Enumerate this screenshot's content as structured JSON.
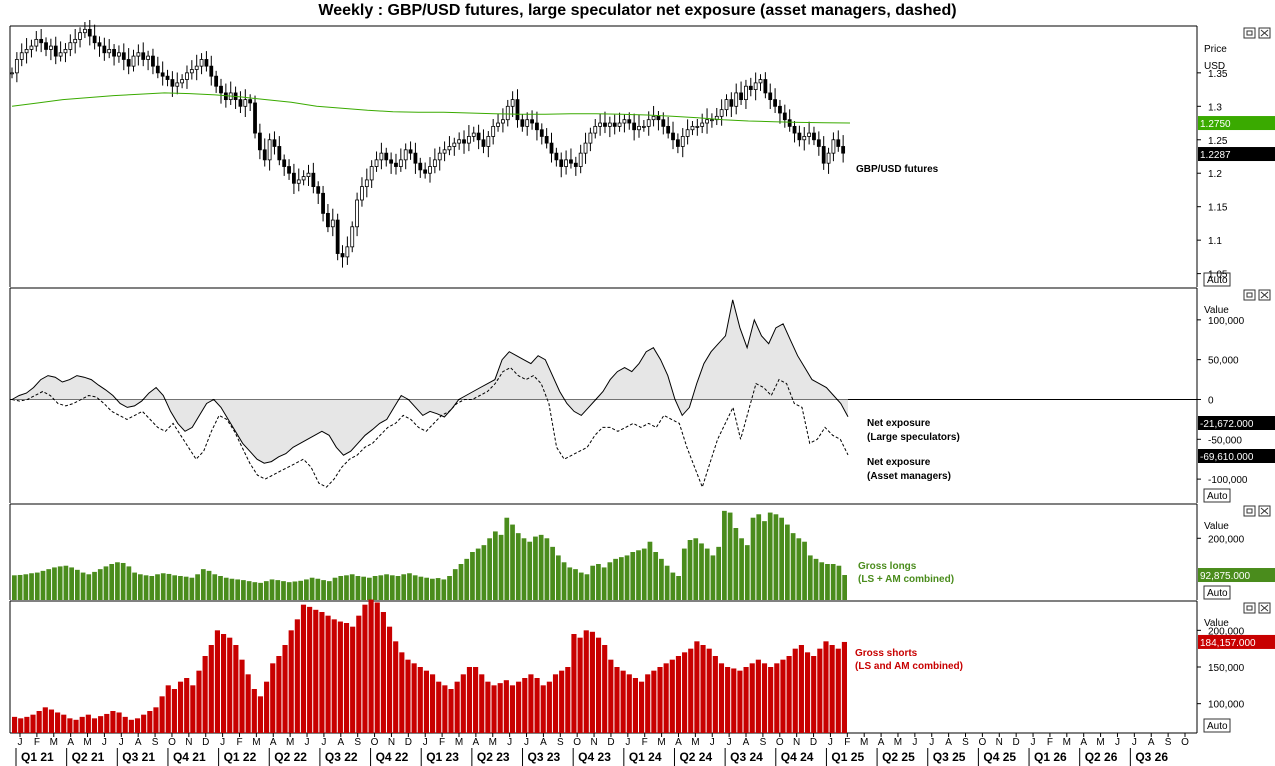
{
  "title": "Weekly : GBP/USD futures, large speculator net exposure (asset managers, dashed)",
  "colors": {
    "green": "#4a8c1c",
    "red": "#c80000",
    "ma": "#3aaa00",
    "black": "#000000"
  },
  "panel_buttons": {
    "auto_label": "Auto"
  },
  "chart_data": [
    {
      "type": "candlestick",
      "name": "price-panel",
      "axis_title": "Price",
      "axis_unit": "USD",
      "ylim": [
        1.03,
        1.42
      ],
      "yticks": [
        1.05,
        1.1,
        1.15,
        1.2,
        1.25,
        1.3,
        1.35
      ],
      "ytick_labels": [
        "1.05",
        "1.1",
        "1.15",
        "1.2",
        "1.25",
        "1.3",
        "1.35"
      ],
      "series_label": "GBP/USD futures",
      "ma_value_label": "1.2750",
      "ma_value": 1.275,
      "last_value_label": "1.2287",
      "last_value": 1.2287,
      "closes": [
        1.35,
        1.37,
        1.38,
        1.385,
        1.39,
        1.4,
        1.395,
        1.385,
        1.39,
        1.375,
        1.38,
        1.385,
        1.395,
        1.4,
        1.41,
        1.415,
        1.405,
        1.395,
        1.39,
        1.38,
        1.385,
        1.375,
        1.38,
        1.37,
        1.36,
        1.375,
        1.38,
        1.37,
        1.375,
        1.36,
        1.35,
        1.345,
        1.34,
        1.33,
        1.335,
        1.34,
        1.35,
        1.355,
        1.36,
        1.37,
        1.36,
        1.345,
        1.33,
        1.32,
        1.31,
        1.32,
        1.31,
        1.3,
        1.31,
        1.305,
        1.26,
        1.235,
        1.22,
        1.25,
        1.24,
        1.22,
        1.21,
        1.2,
        1.185,
        1.19,
        1.195,
        1.2,
        1.18,
        1.17,
        1.14,
        1.12,
        1.13,
        1.08,
        1.075,
        1.09,
        1.12,
        1.16,
        1.18,
        1.19,
        1.21,
        1.22,
        1.23,
        1.22,
        1.215,
        1.21,
        1.22,
        1.235,
        1.23,
        1.215,
        1.205,
        1.2,
        1.21,
        1.22,
        1.23,
        1.235,
        1.24,
        1.245,
        1.25,
        1.245,
        1.255,
        1.26,
        1.25,
        1.24,
        1.255,
        1.27,
        1.275,
        1.28,
        1.3,
        1.31,
        1.28,
        1.27,
        1.28,
        1.275,
        1.265,
        1.255,
        1.245,
        1.23,
        1.22,
        1.21,
        1.22,
        1.215,
        1.21,
        1.23,
        1.245,
        1.26,
        1.27,
        1.275,
        1.27,
        1.275,
        1.27,
        1.275,
        1.28,
        1.275,
        1.265,
        1.27,
        1.27,
        1.28,
        1.285,
        1.28,
        1.27,
        1.26,
        1.25,
        1.24,
        1.255,
        1.265,
        1.27,
        1.27,
        1.275,
        1.28,
        1.28,
        1.285,
        1.295,
        1.31,
        1.3,
        1.32,
        1.31,
        1.33,
        1.325,
        1.335,
        1.34,
        1.32,
        1.31,
        1.3,
        1.29,
        1.28,
        1.27,
        1.26,
        1.25,
        1.255,
        1.26,
        1.25,
        1.24,
        1.215,
        1.23,
        1.25,
        1.24,
        1.23
      ],
      "ma": [
        1.3,
        1.305,
        1.31,
        1.313,
        1.316,
        1.318,
        1.32,
        1.319,
        1.317,
        1.314,
        1.31,
        1.306,
        1.3,
        1.297,
        1.294,
        1.292,
        1.291,
        1.291,
        1.29,
        1.289,
        1.288,
        1.288,
        1.289,
        1.289,
        1.288,
        1.287,
        1.285,
        1.283,
        1.28,
        1.278,
        1.277,
        1.276,
        1.2755,
        1.275
      ]
    },
    {
      "type": "line",
      "name": "net-exposure-panel",
      "axis_title": "Value",
      "ylim": [
        -130000,
        140000
      ],
      "yticks": [
        100000,
        50000,
        0,
        -50000,
        -100000
      ],
      "ytick_labels": [
        "100,000",
        "50,000",
        "0",
        "-50,000",
        "-100,000"
      ],
      "series": [
        {
          "name": "Net exposure (Large speculators)",
          "label_line1": "Net exposure",
          "label_line2": "(Large speculators)",
          "value_label": "-21,672.000",
          "last": -21672,
          "style": "solid",
          "values": [
            0,
            5000,
            8000,
            15000,
            25000,
            30000,
            28000,
            22000,
            25000,
            30000,
            28000,
            25000,
            18000,
            12000,
            5000,
            -5000,
            -10000,
            -8000,
            -2000,
            8000,
            15000,
            5000,
            -15000,
            -30000,
            -40000,
            -35000,
            -20000,
            -5000,
            0,
            -10000,
            -25000,
            -40000,
            -55000,
            -65000,
            -75000,
            -80000,
            -78000,
            -72000,
            -68000,
            -60000,
            -55000,
            -50000,
            -45000,
            -40000,
            -45000,
            -60000,
            -70000,
            -65000,
            -55000,
            -45000,
            -38000,
            -30000,
            -25000,
            -10000,
            5000,
            0,
            -10000,
            -20000,
            -15000,
            -18000,
            -22000,
            -12000,
            0,
            5000,
            10000,
            15000,
            20000,
            25000,
            50000,
            60000,
            55000,
            50000,
            45000,
            55000,
            50000,
            30000,
            10000,
            -5000,
            -15000,
            -20000,
            -10000,
            0,
            10000,
            25000,
            35000,
            40000,
            35000,
            45000,
            60000,
            65000,
            50000,
            30000,
            0,
            -20000,
            -10000,
            20000,
            45000,
            60000,
            70000,
            80000,
            125000,
            90000,
            65000,
            100000,
            80000,
            70000,
            90000,
            95000,
            75000,
            55000,
            40000,
            25000,
            20000,
            15000,
            5000,
            -5000,
            -21672
          ]
        },
        {
          "name": "Net exposure (Asset managers)",
          "label_line1": "Net exposure",
          "label_line2": "(Asset managers)",
          "value_label": "-69,610.000",
          "last": -69610,
          "style": "dashed",
          "values": [
            0,
            -2000,
            0,
            5000,
            10000,
            5000,
            -5000,
            -8000,
            -5000,
            0,
            5000,
            3000,
            -5000,
            -15000,
            -20000,
            -25000,
            -20000,
            -15000,
            -25000,
            -35000,
            -40000,
            -30000,
            -45000,
            -60000,
            -75000,
            -65000,
            -40000,
            -20000,
            -25000,
            -40000,
            -60000,
            -80000,
            -95000,
            -100000,
            -95000,
            -90000,
            -85000,
            -80000,
            -75000,
            -85000,
            -105000,
            -110000,
            -100000,
            -85000,
            -75000,
            -70000,
            -60000,
            -55000,
            -45000,
            -35000,
            -30000,
            -20000,
            -25000,
            -35000,
            -40000,
            -30000,
            -20000,
            -15000,
            -5000,
            0,
            0,
            5000,
            10000,
            20000,
            35000,
            40000,
            30000,
            25000,
            30000,
            20000,
            -5000,
            -60000,
            -75000,
            -70000,
            -65000,
            -60000,
            -45000,
            -35000,
            -35000,
            -40000,
            -35000,
            -30000,
            -35000,
            -30000,
            -35000,
            -20000,
            -25000,
            -30000,
            -60000,
            -85000,
            -110000,
            -80000,
            -50000,
            -30000,
            -10000,
            -50000,
            -15000,
            20000,
            15000,
            5000,
            25000,
            20000,
            -5000,
            -10000,
            -55000,
            -50000,
            -35000,
            -45000,
            -50000,
            -69610
          ]
        }
      ]
    },
    {
      "type": "bar",
      "name": "gross-longs-panel",
      "axis_title": "Value",
      "ylim": [
        20000,
        300000
      ],
      "yticks": [
        200000
      ],
      "ytick_labels": [
        "200,000"
      ],
      "series_label_line1": "Gross longs",
      "series_label_line2": "(LS + AM combined)",
      "value_label": "92,875.000",
      "last": 92875,
      "values": [
        92000,
        93000,
        95000,
        98000,
        100000,
        105000,
        110000,
        115000,
        118000,
        120000,
        115000,
        108000,
        100000,
        95000,
        102000,
        110000,
        118000,
        125000,
        130000,
        128000,
        118000,
        100000,
        95000,
        92000,
        90000,
        95000,
        98000,
        96000,
        92000,
        90000,
        88000,
        85000,
        95000,
        110000,
        105000,
        95000,
        90000,
        85000,
        82000,
        80000,
        78000,
        75000,
        72000,
        70000,
        75000,
        80000,
        78000,
        75000,
        72000,
        74000,
        76000,
        80000,
        85000,
        82000,
        78000,
        75000,
        85000,
        90000,
        92000,
        95000,
        90000,
        88000,
        85000,
        90000,
        92000,
        95000,
        92000,
        90000,
        95000,
        98000,
        92000,
        88000,
        85000,
        82000,
        84000,
        80000,
        90000,
        110000,
        125000,
        140000,
        160000,
        170000,
        180000,
        200000,
        220000,
        210000,
        260000,
        240000,
        215000,
        200000,
        190000,
        205000,
        210000,
        200000,
        175000,
        150000,
        130000,
        115000,
        110000,
        100000,
        95000,
        120000,
        125000,
        115000,
        130000,
        140000,
        145000,
        150000,
        160000,
        165000,
        170000,
        190000,
        160000,
        140000,
        120000,
        100000,
        90000,
        170000,
        195000,
        200000,
        185000,
        170000,
        150000,
        175000,
        280000,
        275000,
        230000,
        200000,
        180000,
        260000,
        270000,
        250000,
        275000,
        270000,
        260000,
        240000,
        215000,
        200000,
        190000,
        150000,
        140000,
        130000,
        125000,
        125000,
        120000,
        92875
      ]
    },
    {
      "type": "bar",
      "name": "gross-shorts-panel",
      "axis_title": "Value",
      "ylim": [
        60000,
        240000
      ],
      "yticks": [
        200000,
        150000,
        100000
      ],
      "ytick_labels": [
        "200,000",
        "150,000",
        "100,000"
      ],
      "series_label_line1": "Gross shorts",
      "series_label_line2": "(LS and AM combined)",
      "value_label": "184,157.000",
      "last": 184157,
      "values": [
        82000,
        80000,
        82000,
        85000,
        90000,
        95000,
        92000,
        88000,
        85000,
        80000,
        78000,
        82000,
        85000,
        80000,
        83000,
        86000,
        90000,
        88000,
        82000,
        78000,
        80000,
        85000,
        90000,
        95000,
        110000,
        125000,
        120000,
        130000,
        135000,
        125000,
        145000,
        165000,
        180000,
        200000,
        195000,
        190000,
        180000,
        160000,
        140000,
        120000,
        110000,
        130000,
        155000,
        165000,
        180000,
        200000,
        215000,
        235000,
        232000,
        228000,
        225000,
        220000,
        215000,
        212000,
        210000,
        205000,
        220000,
        235000,
        242000,
        238000,
        225000,
        205000,
        185000,
        170000,
        160000,
        155000,
        150000,
        145000,
        140000,
        130000,
        125000,
        120000,
        130000,
        140000,
        150000,
        150000,
        140000,
        130000,
        125000,
        128000,
        132000,
        125000,
        130000,
        135000,
        140000,
        135000,
        125000,
        130000,
        140000,
        145000,
        150000,
        195000,
        190000,
        200000,
        198000,
        190000,
        180000,
        160000,
        150000,
        145000,
        140000,
        135000,
        130000,
        140000,
        145000,
        150000,
        155000,
        160000,
        165000,
        170000,
        175000,
        185000,
        180000,
        175000,
        165000,
        155000,
        150000,
        148000,
        145000,
        150000,
        155000,
        160000,
        155000,
        150000,
        155000,
        160000,
        165000,
        175000,
        180000,
        170000,
        165000,
        175000,
        185000,
        180000,
        175000,
        184157
      ]
    }
  ],
  "time_axis": {
    "months": [
      "J",
      "F",
      "M",
      "A",
      "M",
      "J",
      "J",
      "A",
      "S",
      "O",
      "N",
      "D",
      "J",
      "F",
      "M",
      "A",
      "M",
      "J",
      "J",
      "A",
      "S",
      "O",
      "N",
      "D",
      "J",
      "F",
      "M",
      "A",
      "M",
      "J",
      "J",
      "A",
      "S",
      "O",
      "N",
      "D",
      "J",
      "F",
      "M",
      "A",
      "M",
      "J",
      "J",
      "A",
      "S",
      "O",
      "N",
      "D",
      "J",
      "F",
      "M",
      "A",
      "M",
      "J",
      "J",
      "A",
      "S",
      "O",
      "N",
      "D",
      "J",
      "F",
      "M",
      "A",
      "M",
      "J",
      "J",
      "A",
      "S",
      "O"
    ],
    "quarters": [
      "Q1 21",
      "Q2 21",
      "Q3 21",
      "Q4 21",
      "Q1 22",
      "Q2 22",
      "Q3 22",
      "Q4 22",
      "Q1 23",
      "Q2 23",
      "Q3 23",
      "Q4 23",
      "Q1 24",
      "Q2 24",
      "Q3 24",
      "Q4 24",
      "Q1 25",
      "Q2 25",
      "Q3 25",
      "Q4 25",
      "Q1 26",
      "Q2 26",
      "Q3 26"
    ]
  }
}
